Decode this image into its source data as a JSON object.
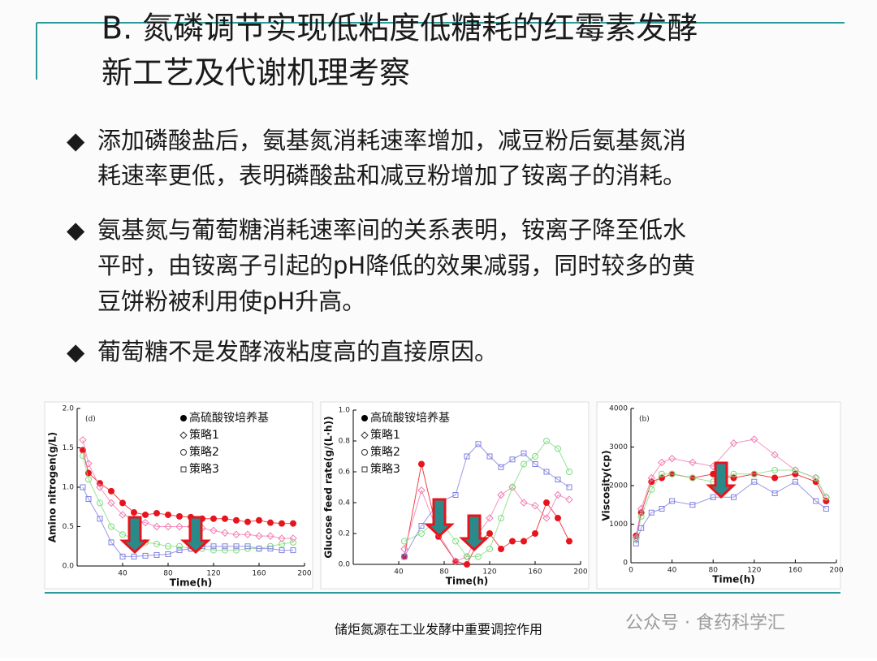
{
  "header": {
    "title_lines": [
      "B. 氮磷调节实现低粘度低糖耗的红霉素发酵",
      "新工艺及代谢机理考察"
    ]
  },
  "bullets": [
    {
      "lines": [
        "添加磷酸盐后，氨基氮消耗速率增加，减豆粉后氨基氮消",
        "耗速率更低，表明磷酸盐和减豆粉增加了铵离子的消耗。"
      ]
    },
    {
      "lines": [
        "氨基氮与葡萄糖消耗速率间的关系表明，铵离子降至低水",
        "平时，由铵离子引起的pH降低的效果减弱，同时较多的黄",
        "豆饼粉被利用使pH升高。"
      ]
    },
    {
      "lines": [
        "葡萄糖不是发酵液粘度高的直接原因。"
      ]
    }
  ],
  "footer": "储炬氮源在工业发酵中重要调控作用",
  "watermark": "公众号 · 食药科学汇",
  "chart_data": [
    {
      "type": "line",
      "panel_label": "(d)",
      "x_label": "Time(h)",
      "y_label": "Amino nitrogen(g/L)",
      "xlim": [
        0,
        200
      ],
      "xticks": [
        40,
        80,
        120,
        160,
        200
      ],
      "ylim": [
        0,
        2
      ],
      "yticks": [
        {
          "value": 0,
          "label": "0.0"
        },
        {
          "value": 0.5,
          "label": "0.5"
        },
        {
          "value": 1,
          "label": "1.0"
        },
        {
          "value": 1.5,
          "label": "1.5"
        },
        {
          "value": 2,
          "label": "2.0"
        }
      ],
      "x": [
        5,
        10,
        20,
        30,
        40,
        50,
        60,
        70,
        80,
        90,
        100,
        110,
        120,
        130,
        140,
        150,
        160,
        170,
        180,
        190
      ],
      "series": [
        {
          "name": "高硫酸铵培养基",
          "color": "#e8141c",
          "marker": "circle-filled",
          "values": [
            1.47,
            1.18,
            1.05,
            0.95,
            0.8,
            0.68,
            0.65,
            0.67,
            0.65,
            0.63,
            0.62,
            0.6,
            0.6,
            0.6,
            0.58,
            0.56,
            0.58,
            0.55,
            0.54,
            0.54
          ]
        },
        {
          "name": "策略1",
          "color": "#f07ab0",
          "marker": "diamond",
          "values": [
            1.6,
            1.3,
            1.0,
            0.8,
            0.65,
            0.6,
            0.55,
            0.5,
            0.5,
            0.5,
            0.5,
            0.48,
            0.45,
            0.42,
            0.4,
            0.4,
            0.38,
            0.38,
            0.35,
            0.35
          ]
        },
        {
          "name": "策略2",
          "color": "#7edc7e",
          "marker": "circle",
          "values": [
            1.4,
            1.1,
            0.8,
            0.5,
            0.4,
            0.35,
            0.3,
            0.28,
            0.25,
            0.25,
            0.22,
            0.22,
            0.2,
            0.2,
            0.2,
            0.22,
            0.22,
            0.25,
            0.28,
            0.3
          ]
        },
        {
          "name": "策略3",
          "color": "#8080e0",
          "marker": "square",
          "values": [
            1.0,
            0.85,
            0.6,
            0.3,
            0.12,
            0.12,
            0.13,
            0.14,
            0.15,
            0.2,
            0.22,
            0.25,
            0.25,
            0.25,
            0.25,
            0.25,
            0.22,
            0.22,
            0.2,
            0.2
          ]
        }
      ]
    },
    {
      "type": "line",
      "x_label": "Time(h)",
      "y_label": "Glucose feed rate(g/(L·h))",
      "xlim": [
        0,
        200
      ],
      "xticks": [
        40,
        80,
        120,
        160,
        200
      ],
      "ylim": [
        0,
        1
      ],
      "yticks": [
        {
          "value": 0,
          "label": "0.0"
        },
        {
          "value": 0.2,
          "label": "0.2"
        },
        {
          "value": 0.4,
          "label": "0.4"
        },
        {
          "value": 0.6,
          "label": "0.6"
        },
        {
          "value": 0.8,
          "label": "0.8"
        },
        {
          "value": 1,
          "label": "1.0"
        }
      ],
      "x": [
        45,
        60,
        75,
        90,
        100,
        110,
        120,
        130,
        140,
        150,
        160,
        170,
        180,
        190
      ],
      "series": [
        {
          "name": "高硫酸铵培养基",
          "color": "#e8141c",
          "marker": "circle-filled",
          "values": [
            0.05,
            0.65,
            0.18,
            0.02,
            0,
            0.15,
            0.2,
            0.1,
            0.15,
            0.15,
            0.2,
            0.4,
            0.3,
            0.15
          ]
        },
        {
          "name": "策略1",
          "color": "#f07ab0",
          "marker": "diamond",
          "values": [
            0.1,
            0.48,
            0.2,
            0.02,
            0.05,
            0.2,
            0.3,
            0.45,
            0.5,
            0.4,
            0.38,
            0.3,
            0.45,
            0.42
          ]
        },
        {
          "name": "策略2",
          "color": "#7edc7e",
          "marker": "circle",
          "values": [
            0.15,
            0.2,
            0.3,
            0.15,
            0.05,
            0.05,
            0.1,
            0.3,
            0.5,
            0.65,
            0.7,
            0.8,
            0.75,
            0.6
          ]
        },
        {
          "name": "策略3",
          "color": "#8080e0",
          "marker": "square",
          "values": [
            0.05,
            0.25,
            0.4,
            0.45,
            0.7,
            0.78,
            0.7,
            0.63,
            0.68,
            0.72,
            0.65,
            0.6,
            0.55,
            0.5
          ]
        }
      ]
    },
    {
      "type": "line",
      "panel_label": "(b)",
      "x_label": "Time(h)",
      "y_label": "Viscosity(cp)",
      "xlim": [
        0,
        200
      ],
      "xticks": [
        0,
        40,
        80,
        120,
        160,
        200
      ],
      "ylim": [
        0,
        4000
      ],
      "yticks": [
        0,
        1000,
        2000,
        3000,
        4000
      ],
      "x": [
        5,
        10,
        20,
        30,
        40,
        60,
        80,
        100,
        120,
        140,
        160,
        180,
        190
      ],
      "series": [
        {
          "color": "#e8141c",
          "marker": "circle-filled",
          "values": [
            700,
            1300,
            2100,
            2200,
            2300,
            2200,
            2300,
            2200,
            2300,
            2200,
            2300,
            2100,
            1600
          ]
        },
        {
          "color": "#f07ab0",
          "marker": "diamond",
          "values": [
            650,
            1400,
            2200,
            2600,
            2700,
            2600,
            2500,
            3100,
            3200,
            2800,
            2400,
            2200,
            1700
          ]
        },
        {
          "color": "#7edc7e",
          "marker": "circle",
          "values": [
            600,
            1200,
            1900,
            2300,
            2300,
            2200,
            2100,
            2300,
            2300,
            2400,
            2400,
            2200,
            1700
          ]
        },
        {
          "color": "#8080e0",
          "marker": "square",
          "values": [
            500,
            900,
            1300,
            1400,
            1600,
            1500,
            1700,
            1700,
            2100,
            1800,
            2100,
            1600,
            1400
          ]
        }
      ]
    }
  ]
}
